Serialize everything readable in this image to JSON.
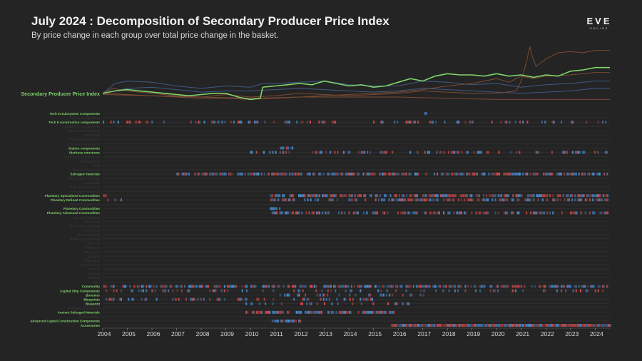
{
  "header": {
    "title": "July 2024 : Decomposition of Secondary Producer Price Index",
    "subtitle": "By price change in each group over total price change in the basket."
  },
  "logo": {
    "main": "EVE",
    "sub": "ONLINE"
  },
  "colors": {
    "index_line": "#7ed36a",
    "label_highlight": "#7ed36a",
    "label_dim": "#3a3a3a",
    "row_line": "#333333",
    "cell_blue": "#4a8fd6",
    "cell_red": "#d24a4a",
    "line_blue": "#3f5a86",
    "line_brown": "#7a4a32"
  },
  "chart_data": {
    "type": "heatmap",
    "title": "July 2024 : Decomposition of Secondary Producer Price Index",
    "x_ticks": [
      "2004",
      "2005",
      "2006",
      "2007",
      "2008",
      "2009",
      "2010",
      "2011",
      "2012",
      "2013",
      "2014",
      "2015",
      "2016",
      "2017",
      "2018",
      "2019",
      "2020",
      "2021",
      "2022",
      "2023",
      "2024"
    ],
    "xlim": [
      2004.0,
      2024.6
    ],
    "index_series": {
      "name": "Secondary Producer Price Index",
      "x": [
        2004.0,
        2004.5,
        2005.0,
        2005.5,
        2006.0,
        2006.5,
        2007.0,
        2007.5,
        2008.0,
        2008.5,
        2009.0,
        2009.5,
        2010.0,
        2010.4,
        2010.5,
        2011.0,
        2011.5,
        2012.0,
        2012.5,
        2013.0,
        2013.5,
        2014.0,
        2014.5,
        2015.0,
        2015.5,
        2016.0,
        2016.5,
        2017.0,
        2017.5,
        2018.0,
        2018.5,
        2019.0,
        2019.5,
        2020.0,
        2020.5,
        2021.0,
        2021.5,
        2022.0,
        2022.5,
        2023.0,
        2023.5,
        2024.0,
        2024.6
      ],
      "y": [
        1.0,
        1.02,
        1.03,
        1.02,
        1.01,
        1.0,
        0.99,
        0.98,
        0.99,
        1.0,
        1.0,
        0.97,
        0.95,
        0.96,
        1.05,
        1.06,
        1.07,
        1.08,
        1.07,
        1.1,
        1.08,
        1.06,
        1.07,
        1.05,
        1.06,
        1.09,
        1.12,
        1.1,
        1.14,
        1.16,
        1.15,
        1.15,
        1.14,
        1.16,
        1.14,
        1.15,
        1.13,
        1.15,
        1.14,
        1.18,
        1.19,
        1.21,
        1.21
      ]
    },
    "context_series": [
      {
        "name": "blue",
        "x": [
          2004.0,
          2004.5,
          2005,
          2006,
          2007,
          2008,
          2009,
          2010,
          2010.5,
          2011,
          2012,
          2013,
          2014,
          2015,
          2016,
          2017,
          2018,
          2019,
          2020,
          2021,
          2022,
          2023,
          2024,
          2024.6
        ],
        "y": [
          1.0,
          1.08,
          1.1,
          1.09,
          1.06,
          1.04,
          1.06,
          1.05,
          1.08,
          1.08,
          1.09,
          1.1,
          1.07,
          1.06,
          1.06,
          1.1,
          1.09,
          1.07,
          1.08,
          1.05,
          1.07,
          1.08,
          1.1,
          1.1
        ]
      },
      {
        "name": "blue",
        "x": [
          2004,
          2005,
          2006,
          2007,
          2008,
          2009,
          2010,
          2011,
          2012,
          2013,
          2014,
          2015,
          2016,
          2017,
          2018,
          2019,
          2020,
          2021,
          2022,
          2023,
          2024,
          2024.6
        ],
        "y": [
          1.0,
          1.04,
          1.05,
          1.03,
          1.01,
          1.02,
          1.02,
          1.03,
          1.04,
          1.03,
          1.02,
          1.01,
          1.02,
          1.04,
          1.03,
          1.02,
          1.01,
          1.0,
          1.01,
          1.02,
          1.04,
          1.04
        ]
      },
      {
        "name": "brown",
        "x": [
          2004,
          2004.4,
          2005,
          2006,
          2007,
          2008,
          2009,
          2010,
          2011,
          2012,
          2013,
          2014,
          2015,
          2016,
          2017,
          2018,
          2019,
          2020,
          2020.8,
          2021.0,
          2021.2,
          2021.35,
          2021.45,
          2021.6,
          2022,
          2022.5,
          2023,
          2023.5,
          2024,
          2024.6
        ],
        "y": [
          1.0,
          1.04,
          1.02,
          1.0,
          0.98,
          0.97,
          0.99,
          0.97,
          0.98,
          1.0,
          0.99,
          0.98,
          0.99,
          1.0,
          1.02,
          1.01,
          1.0,
          1.0,
          1.02,
          1.1,
          1.25,
          1.38,
          1.3,
          1.22,
          1.28,
          1.33,
          1.34,
          1.33,
          1.35,
          1.35
        ]
      },
      {
        "name": "brown",
        "x": [
          2004,
          2005,
          2006,
          2007,
          2008,
          2009,
          2010,
          2011,
          2012,
          2013,
          2014,
          2015,
          2016,
          2017,
          2018,
          2019,
          2019.5,
          2020,
          2020.5,
          2021,
          2021.5,
          2022,
          2023,
          2024,
          2024.6
        ],
        "y": [
          1.0,
          0.99,
          0.98,
          0.97,
          0.96,
          0.96,
          0.95,
          0.96,
          0.97,
          0.98,
          0.99,
          1.0,
          1.01,
          1.03,
          1.06,
          1.08,
          1.1,
          1.12,
          1.09,
          1.14,
          1.12,
          1.14,
          1.15,
          1.17,
          1.17
        ]
      },
      {
        "name": "brown",
        "x": [
          2004,
          2006,
          2008,
          2010,
          2012,
          2014,
          2016,
          2018,
          2020,
          2022,
          2024,
          2024.6
        ],
        "y": [
          0.99,
          0.98,
          0.97,
          0.96,
          0.97,
          0.97,
          0.97,
          0.96,
          0.95,
          0.95,
          0.95,
          0.95
        ]
      }
    ],
    "index_ylim": [
      0.9,
      1.4
    ],
    "rows": [
      {
        "label": "Tech III Subsystem Components",
        "highlight": true,
        "segments": [
          {
            "x0": 2017.05,
            "x1": 2017.15,
            "density": 1.0,
            "mix": 0.0
          }
        ]
      },
      {
        "label": "Tech III Components",
        "highlight": false,
        "segments": []
      },
      {
        "label": "Tech II construction components",
        "highlight": true,
        "segments": [
          {
            "x0": 2004.0,
            "x1": 2006.5,
            "density": 0.5,
            "mix": 0.5
          },
          {
            "x0": 2007.5,
            "x1": 2011.2,
            "density": 0.4,
            "mix": 0.5
          },
          {
            "x0": 2011.2,
            "x1": 2024.5,
            "density": 0.3,
            "mix": 0.5
          }
        ]
      },
      {
        "label": "Hybrid Tech Components",
        "highlight": false,
        "segments": []
      },
      {
        "label": "Salvaged Components",
        "highlight": false,
        "segments": []
      },
      {
        "label": "Fuel Blocks",
        "highlight": false,
        "segments": []
      },
      {
        "label": "Research Equipment",
        "highlight": false,
        "segments": []
      },
      {
        "label": "Structure Components",
        "highlight": false,
        "segments": []
      },
      {
        "label": "Station components",
        "highlight": true,
        "segments": [
          {
            "x0": 2011.2,
            "x1": 2011.7,
            "density": 0.8,
            "mix": 0.2
          }
        ]
      },
      {
        "label": "Starbase structures",
        "highlight": true,
        "segments": [
          {
            "x0": 2009.8,
            "x1": 2024.6,
            "density": 0.35,
            "mix": 0.5
          }
        ]
      },
      {
        "label": "Construction Components",
        "highlight": false,
        "segments": []
      },
      {
        "label": "Mutaplasmids",
        "highlight": false,
        "segments": []
      },
      {
        "label": "Rigs",
        "highlight": false,
        "segments": []
      },
      {
        "label": "Reaction Materials",
        "highlight": false,
        "segments": []
      },
      {
        "label": "Salvaged materials",
        "highlight": true,
        "segments": [
          {
            "x0": 2007.0,
            "x1": 2024.5,
            "density": 0.75,
            "mix": 0.55
          }
        ]
      },
      {
        "label": "Intermediate Materials",
        "highlight": false,
        "segments": []
      },
      {
        "label": "Composite",
        "highlight": false,
        "segments": []
      },
      {
        "label": "Raw Moon Materials",
        "highlight": false,
        "segments": []
      },
      {
        "label": "Processed Materials",
        "highlight": false,
        "segments": []
      },
      {
        "label": "Planetary Specialized Commodities",
        "highlight": true,
        "segments": [
          {
            "x0": 2004.0,
            "x1": 2004.15,
            "density": 1.0,
            "mix": 1.0
          },
          {
            "x0": 2010.8,
            "x1": 2024.5,
            "density": 0.7,
            "mix": 0.5
          }
        ]
      },
      {
        "label": "Planetary Refined Commodities",
        "highlight": true,
        "segments": [
          {
            "x0": 2004.0,
            "x1": 2005.0,
            "density": 0.2,
            "mix": 0.5
          },
          {
            "x0": 2010.8,
            "x1": 2024.5,
            "density": 0.6,
            "mix": 0.5
          }
        ]
      },
      {
        "label": "Planetary Resources",
        "highlight": false,
        "segments": []
      },
      {
        "label": "Planetary Commodities",
        "highlight": true,
        "segments": [
          {
            "x0": 2010.8,
            "x1": 2011.2,
            "density": 0.8,
            "mix": 0.2
          }
        ]
      },
      {
        "label": "Planetary Advanced Commodities",
        "highlight": true,
        "segments": [
          {
            "x0": 2010.8,
            "x1": 2024.5,
            "density": 0.45,
            "mix": 0.5
          }
        ]
      },
      {
        "label": "Booster Materials",
        "highlight": false,
        "segments": []
      },
      {
        "label": "Gas Clouds",
        "highlight": false,
        "segments": []
      },
      {
        "label": "Biochemical Material",
        "highlight": false,
        "segments": []
      },
      {
        "label": "Ice Products",
        "highlight": false,
        "segments": []
      },
      {
        "label": "Moon Materials",
        "highlight": false,
        "segments": []
      },
      {
        "label": "Named Components",
        "highlight": false,
        "segments": []
      },
      {
        "label": "Minerals",
        "highlight": false,
        "segments": []
      },
      {
        "label": "Datacores",
        "highlight": false,
        "segments": []
      },
      {
        "label": "Decryptors",
        "highlight": false,
        "segments": []
      },
      {
        "label": "Implants",
        "highlight": false,
        "segments": []
      },
      {
        "label": "Ship Skins",
        "highlight": false,
        "segments": []
      },
      {
        "label": "Limited Items",
        "highlight": false,
        "segments": []
      },
      {
        "label": "Drones",
        "highlight": false,
        "segments": []
      },
      {
        "label": "Charges",
        "highlight": false,
        "segments": []
      },
      {
        "label": "Modules",
        "highlight": false,
        "segments": []
      },
      {
        "label": "Ships",
        "highlight": false,
        "segments": []
      },
      {
        "label": "Commodity",
        "highlight": true,
        "segments": [
          {
            "x0": 2004.0,
            "x1": 2024.5,
            "density": 0.65,
            "mix": 0.5
          }
        ]
      },
      {
        "label": "Capital Ship Components",
        "highlight": true,
        "segments": [
          {
            "x0": 2004.0,
            "x1": 2024.5,
            "density": 0.25,
            "mix": 0.5
          }
        ]
      },
      {
        "label": "Boosters",
        "highlight": true,
        "segments": [
          {
            "x0": 2011.0,
            "x1": 2017.5,
            "density": 0.3,
            "mix": 0.3
          }
        ]
      },
      {
        "label": "Blueprints",
        "highlight": true,
        "segments": [
          {
            "x0": 2004.0,
            "x1": 2015.0,
            "density": 0.35,
            "mix": 0.5
          }
        ]
      },
      {
        "label": "Blueprint",
        "highlight": true,
        "segments": [
          {
            "x0": 2009.8,
            "x1": 2016.5,
            "density": 0.25,
            "mix": 0.4
          }
        ]
      },
      {
        "label": "Special Edition Assets",
        "highlight": false,
        "segments": []
      },
      {
        "label": "Ancient Salvaged Materials",
        "highlight": true,
        "segments": [
          {
            "x0": 2009.8,
            "x1": 2015.8,
            "density": 0.8,
            "mix": 0.55
          }
        ]
      },
      {
        "label": "Ancient Relics",
        "highlight": false,
        "segments": []
      },
      {
        "label": "Advanced Capital Construction Components",
        "highlight": true,
        "segments": [
          {
            "x0": 2010.8,
            "x1": 2012.0,
            "density": 0.8,
            "mix": 0.3
          }
        ]
      },
      {
        "label": "Accessories",
        "highlight": true,
        "segments": [
          {
            "x0": 2015.7,
            "x1": 2024.6,
            "density": 1.0,
            "mix": 0.5
          }
        ]
      }
    ]
  }
}
